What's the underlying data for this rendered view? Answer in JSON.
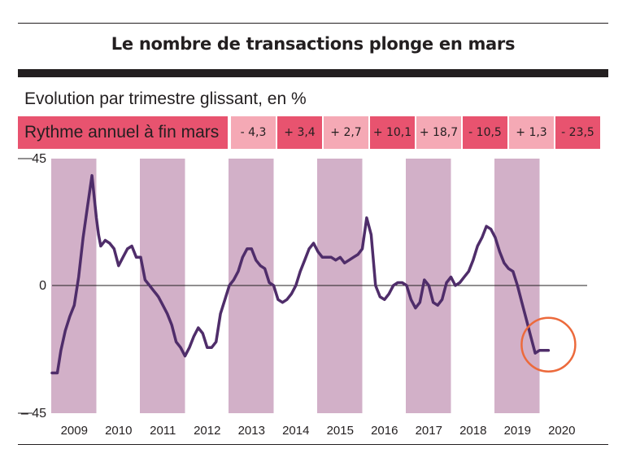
{
  "title": "Le nombre de transactions plonge en mars",
  "subtitle": "Evolution par trimestre glissant, en %",
  "rate_strip": {
    "label": "Rythme annuel à fin mars",
    "values": [
      "- 4,3",
      "+ 3,4",
      "+ 2,7",
      "+ 10,1",
      "+ 18,7",
      "- 10,5",
      "+ 1,3",
      "- 23,5"
    ]
  },
  "colors": {
    "line": "#4f2d6a",
    "band": "#d2b0c8",
    "strip_dark": "#e8536f",
    "strip_light": "#f5a9b5",
    "highlight_circle": "#ec6a3c"
  },
  "chart_data": {
    "type": "line",
    "yticks": [
      "45",
      "0",
      "– 45"
    ],
    "ylim": [
      -45,
      45
    ],
    "xticks": [
      "2009",
      "2010",
      "2011",
      "2012",
      "2013",
      "2014",
      "2015",
      "2016",
      "2017",
      "2018",
      "2019",
      "2020"
    ],
    "xlim": [
      2009.0,
      2020.5
    ],
    "shaded_years": [
      "2009",
      "2011",
      "2013",
      "2015",
      "2017",
      "2019"
    ],
    "series": [
      {
        "x": [
          2009.0,
          2009.06,
          2009.12,
          2009.2,
          2009.3,
          2009.4,
          2009.5,
          2009.6,
          2009.7,
          2009.8,
          2009.9,
          2010.0,
          2010.05,
          2010.1,
          2010.2,
          2010.3,
          2010.4,
          2010.5,
          2010.6,
          2010.7,
          2010.8,
          2010.9,
          2011.0,
          2011.05,
          2011.1,
          2011.2,
          2011.3,
          2011.35,
          2011.4,
          2011.5,
          2011.6,
          2011.7,
          2011.8,
          2011.9,
          2012.0,
          2012.1,
          2012.2,
          2012.3,
          2012.4,
          2012.5,
          2012.6,
          2012.7,
          2012.8,
          2012.9,
          2013.0,
          2013.1,
          2013.2,
          2013.3,
          2013.4,
          2013.5,
          2013.6,
          2013.7,
          2013.8,
          2013.9,
          2014.0,
          2014.1,
          2014.2,
          2014.3,
          2014.4,
          2014.5,
          2014.6,
          2014.7,
          2014.8,
          2014.9,
          2015.0,
          2015.1,
          2015.2,
          2015.3,
          2015.4,
          2015.5,
          2015.6,
          2015.7,
          2015.8,
          2015.9,
          2016.0,
          2016.1,
          2016.2,
          2016.3,
          2016.4,
          2016.5,
          2016.6,
          2016.7,
          2016.8,
          2016.9,
          2017.0,
          2017.1,
          2017.2,
          2017.3,
          2017.4,
          2017.5,
          2017.6,
          2017.7,
          2017.8,
          2017.9,
          2018.0,
          2018.1,
          2018.2,
          2018.3,
          2018.4,
          2018.5,
          2018.6,
          2018.7,
          2018.8,
          2018.9,
          2019.0,
          2019.1,
          2019.2,
          2019.3,
          2019.4,
          2019.5,
          2019.6,
          2019.7,
          2019.8,
          2019.9,
          2020.0,
          2020.1,
          2020.2
        ],
        "y": [
          -31,
          -31,
          -31,
          -23,
          -16,
          -11,
          -7,
          3,
          17,
          28,
          39,
          24,
          18,
          14,
          16,
          15,
          13,
          7,
          10,
          13,
          14,
          10,
          10,
          6,
          2,
          0,
          -2,
          -3,
          -4,
          -7,
          -10,
          -14,
          -20,
          -22,
          -25,
          -22,
          -18,
          -15,
          -17,
          -22,
          -22,
          -20,
          -10,
          -5,
          0,
          2,
          5,
          10,
          13,
          13,
          9,
          7,
          6,
          1,
          0,
          -5,
          -6,
          -5,
          -3,
          0,
          5,
          9,
          13,
          15,
          12,
          10,
          10,
          10,
          9,
          10,
          8,
          9,
          10,
          11,
          13,
          24,
          18,
          0,
          -4,
          -5,
          -3,
          0,
          1,
          1,
          0,
          -5,
          -8,
          -6,
          2,
          0,
          -6,
          -7,
          -5,
          1,
          3,
          0,
          1,
          3,
          5,
          9,
          14,
          17,
          21,
          20,
          17,
          12,
          8,
          6,
          5,
          0,
          -6,
          -12,
          -18,
          -24,
          -23,
          -23,
          -23
        ]
      }
    ]
  }
}
